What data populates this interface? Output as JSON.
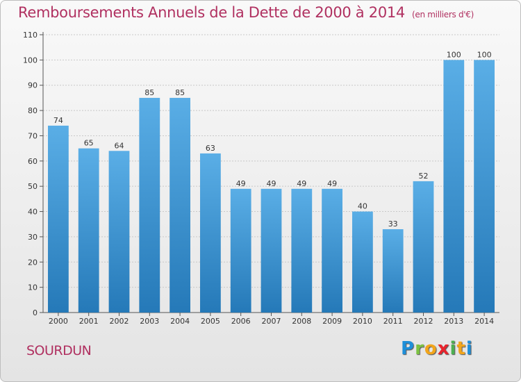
{
  "title": "Remboursements Annuels de la Dette de 2000 à 2014",
  "unit": "(en milliers d'€)",
  "place": "SOURDUN",
  "logo": {
    "text": "Proxiti",
    "letters": [
      "P",
      "r",
      "o",
      "x",
      "i",
      "t",
      "i"
    ],
    "colors": [
      "#1e8fd9",
      "#7cc242",
      "#f2a51b",
      "#e8242d",
      "#4caf50",
      "#f2a51b",
      "#1e8fd9"
    ]
  },
  "colors": {
    "bar": "#5aaee6",
    "bar_dark": "#2579b8",
    "title": "#b03060"
  },
  "chart_data": {
    "type": "bar",
    "title": "Remboursements Annuels de la Dette de 2000 à 2014",
    "ylabel": "",
    "xlabel": "",
    "ylim": [
      0,
      110
    ],
    "yticks": [
      0,
      10,
      20,
      30,
      40,
      50,
      60,
      70,
      80,
      90,
      100,
      110
    ],
    "grid": true,
    "categories": [
      "2000",
      "2001",
      "2002",
      "2003",
      "2004",
      "2005",
      "2006",
      "2007",
      "2008",
      "2009",
      "2010",
      "2011",
      "2012",
      "2013",
      "2014"
    ],
    "values": [
      74,
      65,
      64,
      85,
      85,
      63,
      49,
      49,
      49,
      49,
      40,
      33,
      52,
      100,
      100
    ]
  }
}
